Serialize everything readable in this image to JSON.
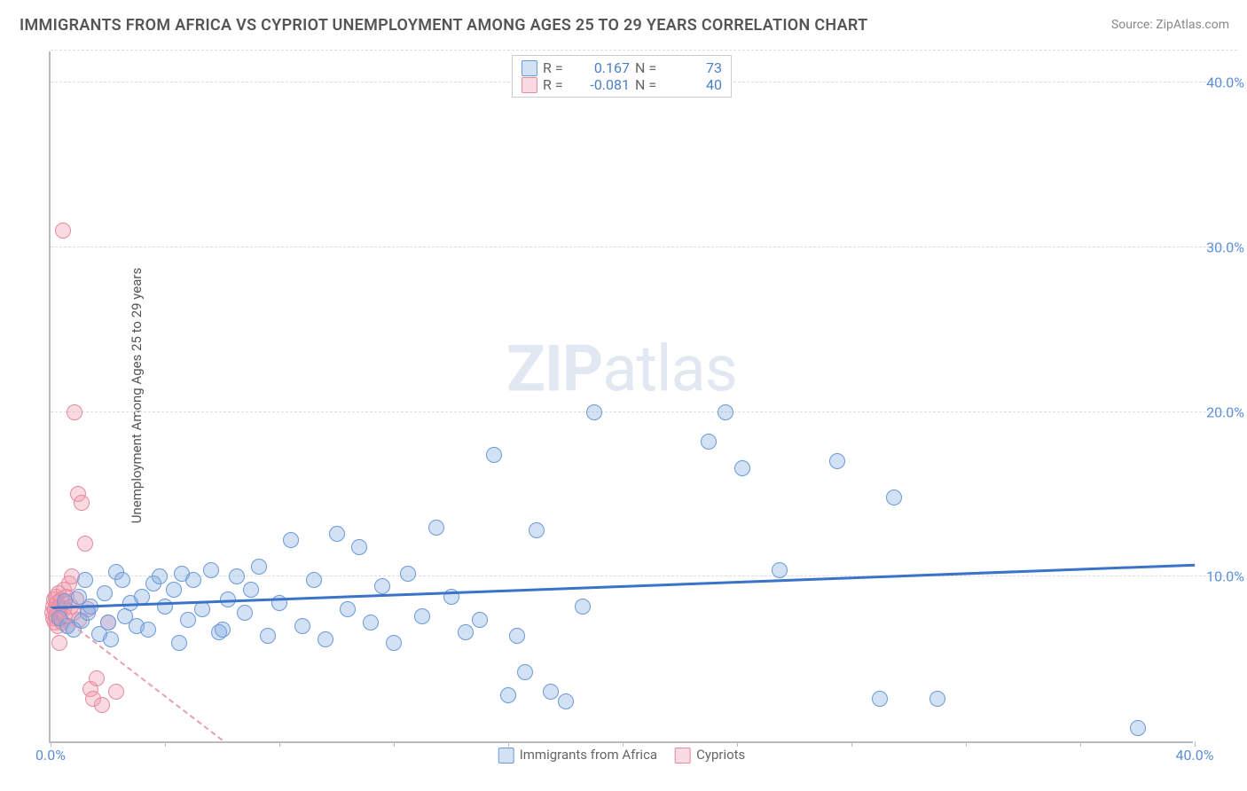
{
  "title": "IMMIGRANTS FROM AFRICA VS CYPRIOT UNEMPLOYMENT AMONG AGES 25 TO 29 YEARS CORRELATION CHART",
  "source_prefix": "Source: ",
  "source_name": "ZipAtlas.com",
  "ylabel": "Unemployment Among Ages 25 to 29 years",
  "watermark_bold": "ZIP",
  "watermark_rest": "atlas",
  "chart": {
    "type": "scatter",
    "xlim": [
      0,
      40
    ],
    "ylim": [
      0,
      42
    ],
    "xtick_positions": [
      0,
      4,
      8,
      12,
      16,
      20,
      24,
      28,
      32,
      36,
      40
    ],
    "xtick_labels": {
      "0": "0.0%",
      "40": "40.0%"
    },
    "ytick_positions": [
      10,
      20,
      30,
      40
    ],
    "ytick_labels": {
      "10": "10.0%",
      "20": "20.0%",
      "30": "30.0%",
      "40": "40.0%"
    },
    "grid_color": "#dddddd",
    "axis_color": "#bbbbbb",
    "tick_label_color": "#5a8fd6",
    "background_color": "#ffffff",
    "point_radius": 9,
    "series": [
      {
        "name": "Immigrants from Africa",
        "fill": "rgba(130,170,225,0.35)",
        "stroke": "#6a9ad8",
        "stroke_width": 1.5,
        "R": "0.167",
        "N": "73",
        "trend": {
          "x1": 0,
          "y1": 8.0,
          "x2": 40,
          "y2": 10.6,
          "color": "#3a73c8",
          "width": 3,
          "dash": "solid"
        },
        "data": [
          [
            0.3,
            7.5
          ],
          [
            0.5,
            8.5
          ],
          [
            0.6,
            7.0
          ],
          [
            0.8,
            6.8
          ],
          [
            1.0,
            8.8
          ],
          [
            1.1,
            7.3
          ],
          [
            1.3,
            7.8
          ],
          [
            1.4,
            8.2
          ],
          [
            1.7,
            6.5
          ],
          [
            1.9,
            9.0
          ],
          [
            2.0,
            7.2
          ],
          [
            2.3,
            10.3
          ],
          [
            2.5,
            9.8
          ],
          [
            2.6,
            7.6
          ],
          [
            2.8,
            8.4
          ],
          [
            3.0,
            7.0
          ],
          [
            3.2,
            8.8
          ],
          [
            3.4,
            6.8
          ],
          [
            3.6,
            9.6
          ],
          [
            3.8,
            10.0
          ],
          [
            4.0,
            8.2
          ],
          [
            4.3,
            9.2
          ],
          [
            4.6,
            10.2
          ],
          [
            4.8,
            7.4
          ],
          [
            5.0,
            9.8
          ],
          [
            5.3,
            8.0
          ],
          [
            5.6,
            10.4
          ],
          [
            5.9,
            6.6
          ],
          [
            6.2,
            8.6
          ],
          [
            6.5,
            10.0
          ],
          [
            6.8,
            7.8
          ],
          [
            7.0,
            9.2
          ],
          [
            7.3,
            10.6
          ],
          [
            7.6,
            6.4
          ],
          [
            8.0,
            8.4
          ],
          [
            8.4,
            12.2
          ],
          [
            8.8,
            7.0
          ],
          [
            9.2,
            9.8
          ],
          [
            9.6,
            6.2
          ],
          [
            10.0,
            12.6
          ],
          [
            10.4,
            8.0
          ],
          [
            10.8,
            11.8
          ],
          [
            11.2,
            7.2
          ],
          [
            11.6,
            9.4
          ],
          [
            12.0,
            6.0
          ],
          [
            12.5,
            10.2
          ],
          [
            13.0,
            7.6
          ],
          [
            13.5,
            13.0
          ],
          [
            14.0,
            8.8
          ],
          [
            14.5,
            6.6
          ],
          [
            15.0,
            7.4
          ],
          [
            15.5,
            17.4
          ],
          [
            16.0,
            2.8
          ],
          [
            16.3,
            6.4
          ],
          [
            16.6,
            4.2
          ],
          [
            17.0,
            12.8
          ],
          [
            17.5,
            3.0
          ],
          [
            18.0,
            2.4
          ],
          [
            18.6,
            8.2
          ],
          [
            19.0,
            20.0
          ],
          [
            23.0,
            18.2
          ],
          [
            23.6,
            20.0
          ],
          [
            24.2,
            16.6
          ],
          [
            25.5,
            10.4
          ],
          [
            27.5,
            17.0
          ],
          [
            29.0,
            2.6
          ],
          [
            29.5,
            14.8
          ],
          [
            31.0,
            2.6
          ],
          [
            38.0,
            0.8
          ],
          [
            1.2,
            9.8
          ],
          [
            2.1,
            6.2
          ],
          [
            4.5,
            6.0
          ],
          [
            6.0,
            6.8
          ]
        ]
      },
      {
        "name": "Cypriots",
        "fill": "rgba(240,150,170,0.35)",
        "stroke": "#e68aa0",
        "stroke_width": 1.5,
        "R": "-0.081",
        "N": "40",
        "trend": {
          "x1": 0,
          "y1": 8.0,
          "x2": 6,
          "y2": 0.0,
          "color": "#e8a0b0",
          "width": 2,
          "dash": "5,4"
        },
        "data": [
          [
            0.05,
            7.8
          ],
          [
            0.08,
            8.2
          ],
          [
            0.1,
            7.5
          ],
          [
            0.12,
            8.6
          ],
          [
            0.14,
            7.2
          ],
          [
            0.16,
            8.0
          ],
          [
            0.18,
            8.8
          ],
          [
            0.2,
            7.6
          ],
          [
            0.22,
            8.4
          ],
          [
            0.25,
            7.0
          ],
          [
            0.28,
            9.0
          ],
          [
            0.3,
            7.8
          ],
          [
            0.32,
            8.2
          ],
          [
            0.35,
            7.4
          ],
          [
            0.38,
            8.6
          ],
          [
            0.4,
            7.2
          ],
          [
            0.42,
            31.0
          ],
          [
            0.45,
            9.2
          ],
          [
            0.48,
            8.0
          ],
          [
            0.5,
            7.6
          ],
          [
            0.55,
            8.8
          ],
          [
            0.6,
            7.0
          ],
          [
            0.65,
            9.6
          ],
          [
            0.7,
            8.2
          ],
          [
            0.75,
            10.0
          ],
          [
            0.8,
            7.8
          ],
          [
            0.85,
            20.0
          ],
          [
            0.9,
            8.6
          ],
          [
            0.95,
            15.0
          ],
          [
            1.0,
            7.4
          ],
          [
            1.1,
            14.5
          ],
          [
            1.2,
            12.0
          ],
          [
            1.3,
            8.0
          ],
          [
            1.4,
            3.2
          ],
          [
            1.5,
            2.6
          ],
          [
            1.6,
            3.8
          ],
          [
            1.8,
            2.2
          ],
          [
            2.0,
            7.2
          ],
          [
            2.3,
            3.0
          ],
          [
            0.3,
            6.0
          ]
        ]
      }
    ]
  },
  "legend_top": {
    "r_label": "R =",
    "n_label": "N ="
  }
}
